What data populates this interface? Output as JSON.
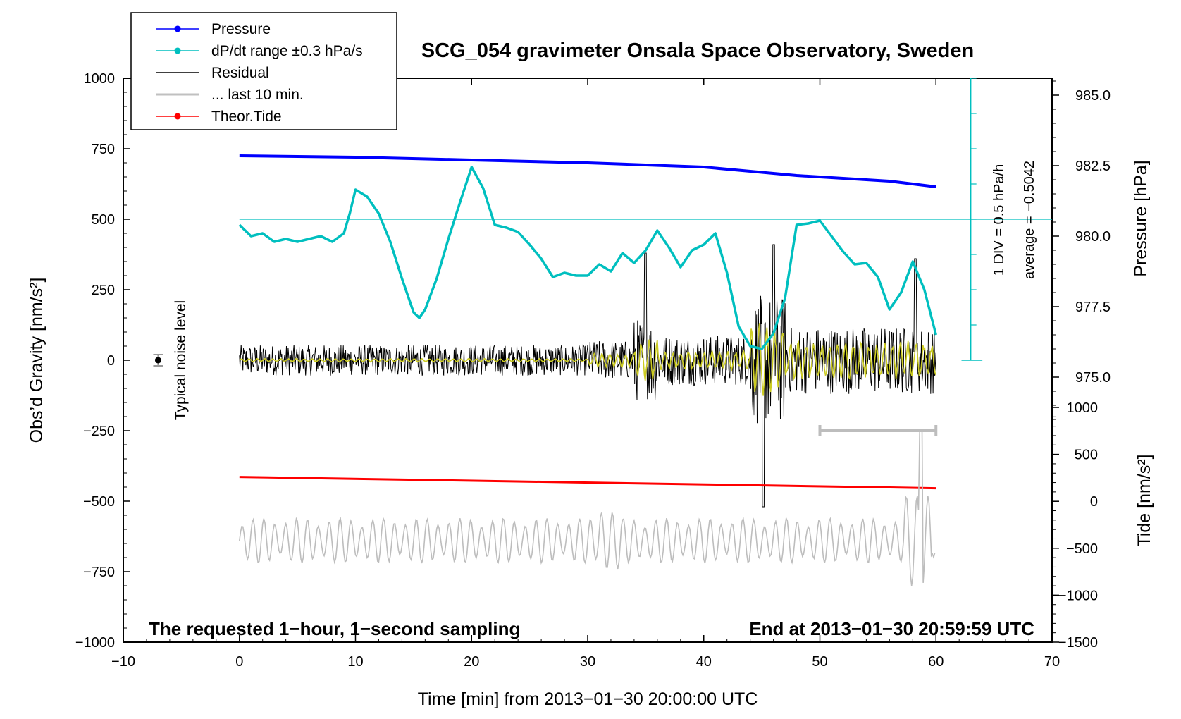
{
  "chart_data": {
    "type": "line",
    "title": "SCG_054 gravimeter Onsala Space Observatory, Sweden",
    "xlabel": "Time [min] from 2013−01−30 20:00:00 UTC",
    "ylabel_left": "Obs’d Gravity [nm/s²]",
    "ylabel_right_pressure": "Pressure [hPa]",
    "ylabel_right_tide": "Tide [nm/s²]",
    "xlim": [
      -10,
      70
    ],
    "ylim_left": [
      -1000,
      1000
    ],
    "x_ticks": [
      "−10",
      "0",
      "10",
      "20",
      "30",
      "40",
      "50",
      "60",
      "70"
    ],
    "y_ticks_left": [
      "1000",
      "750",
      "500",
      "250",
      "0",
      "−250",
      "−500",
      "−750",
      "−1000"
    ],
    "pressure_axis": {
      "ticks": [
        "985.0",
        "982.5",
        "980.0",
        "977.5",
        "975.0"
      ],
      "range": [
        973.0,
        986.0
      ]
    },
    "tide_axis": {
      "ticks": [
        "1000",
        "500",
        "0",
        "−500",
        "−1000",
        "−1500"
      ],
      "range": [
        -1500,
        1000
      ]
    },
    "dpdt_scale": {
      "label_div": "1 DIV = 0.5 hPa/h",
      "label_avg": "average = −0.5042",
      "divisions": 8
    },
    "noise_marker": {
      "label": "Typical noise level",
      "x": -7,
      "y": 0,
      "err": 20
    },
    "last10_bar": {
      "x_start": 50,
      "x_end": 60,
      "y": -250
    },
    "footer_left": "The requested 1−hour, 1−second sampling",
    "footer_right": "End at 2013−01−30 20:59:59 UTC",
    "legend": [
      {
        "label": "Pressure",
        "color": "#0000ff",
        "marker": "dot"
      },
      {
        "label": "dP/dt range ±0.3 hPa/s",
        "color": "#00bfbf",
        "marker": "dot"
      },
      {
        "label": "Residual",
        "color": "#000000",
        "marker": "none"
      },
      {
        "label": "... last 10 min.",
        "color": "#c0c0c0",
        "marker": "none"
      },
      {
        "label": "Theor.Tide",
        "color": "#ff0000",
        "marker": "dot"
      }
    ],
    "series": [
      {
        "name": "Pressure",
        "color": "#0000ff",
        "axis": "pressure",
        "x": [
          0,
          10,
          20,
          30,
          40,
          44,
          48,
          52,
          56,
          60
        ],
        "values": [
          982.85,
          982.8,
          982.7,
          982.6,
          982.45,
          982.3,
          982.15,
          982.05,
          981.95,
          981.75
        ]
      },
      {
        "name": "Theor.Tide",
        "color": "#ff0000",
        "axis": "tide",
        "x": [
          0,
          60
        ],
        "values": [
          260,
          140
        ]
      },
      {
        "name": "dP/dt range ±0.3 hPa/s",
        "color": "#00bfbf",
        "axis": "left",
        "x": [
          0,
          1,
          2,
          3,
          4,
          5,
          6,
          7,
          8,
          9,
          9.5,
          10,
          11,
          12,
          13,
          14,
          15,
          15.5,
          16,
          17,
          18,
          19,
          20,
          21,
          22,
          23,
          24,
          25,
          26,
          27,
          28,
          29,
          30,
          31,
          32,
          33,
          34,
          35,
          36,
          37,
          38,
          39,
          40,
          41,
          42,
          43,
          44,
          45,
          46,
          47,
          48,
          49,
          50,
          51,
          52,
          53,
          54,
          55,
          56,
          57,
          58,
          59,
          60
        ],
        "values": [
          480,
          440,
          450,
          420,
          430,
          420,
          430,
          440,
          420,
          450,
          520,
          605,
          580,
          520,
          420,
          290,
          170,
          150,
          180,
          290,
          430,
          560,
          685,
          610,
          480,
          470,
          455,
          410,
          360,
          295,
          310,
          300,
          300,
          340,
          315,
          380,
          345,
          390,
          460,
          400,
          330,
          390,
          410,
          450,
          310,
          120,
          50,
          40,
          95,
          220,
          480,
          485,
          495,
          440,
          385,
          340,
          345,
          295,
          180,
          240,
          350,
          250,
          90
        ]
      }
    ]
  }
}
